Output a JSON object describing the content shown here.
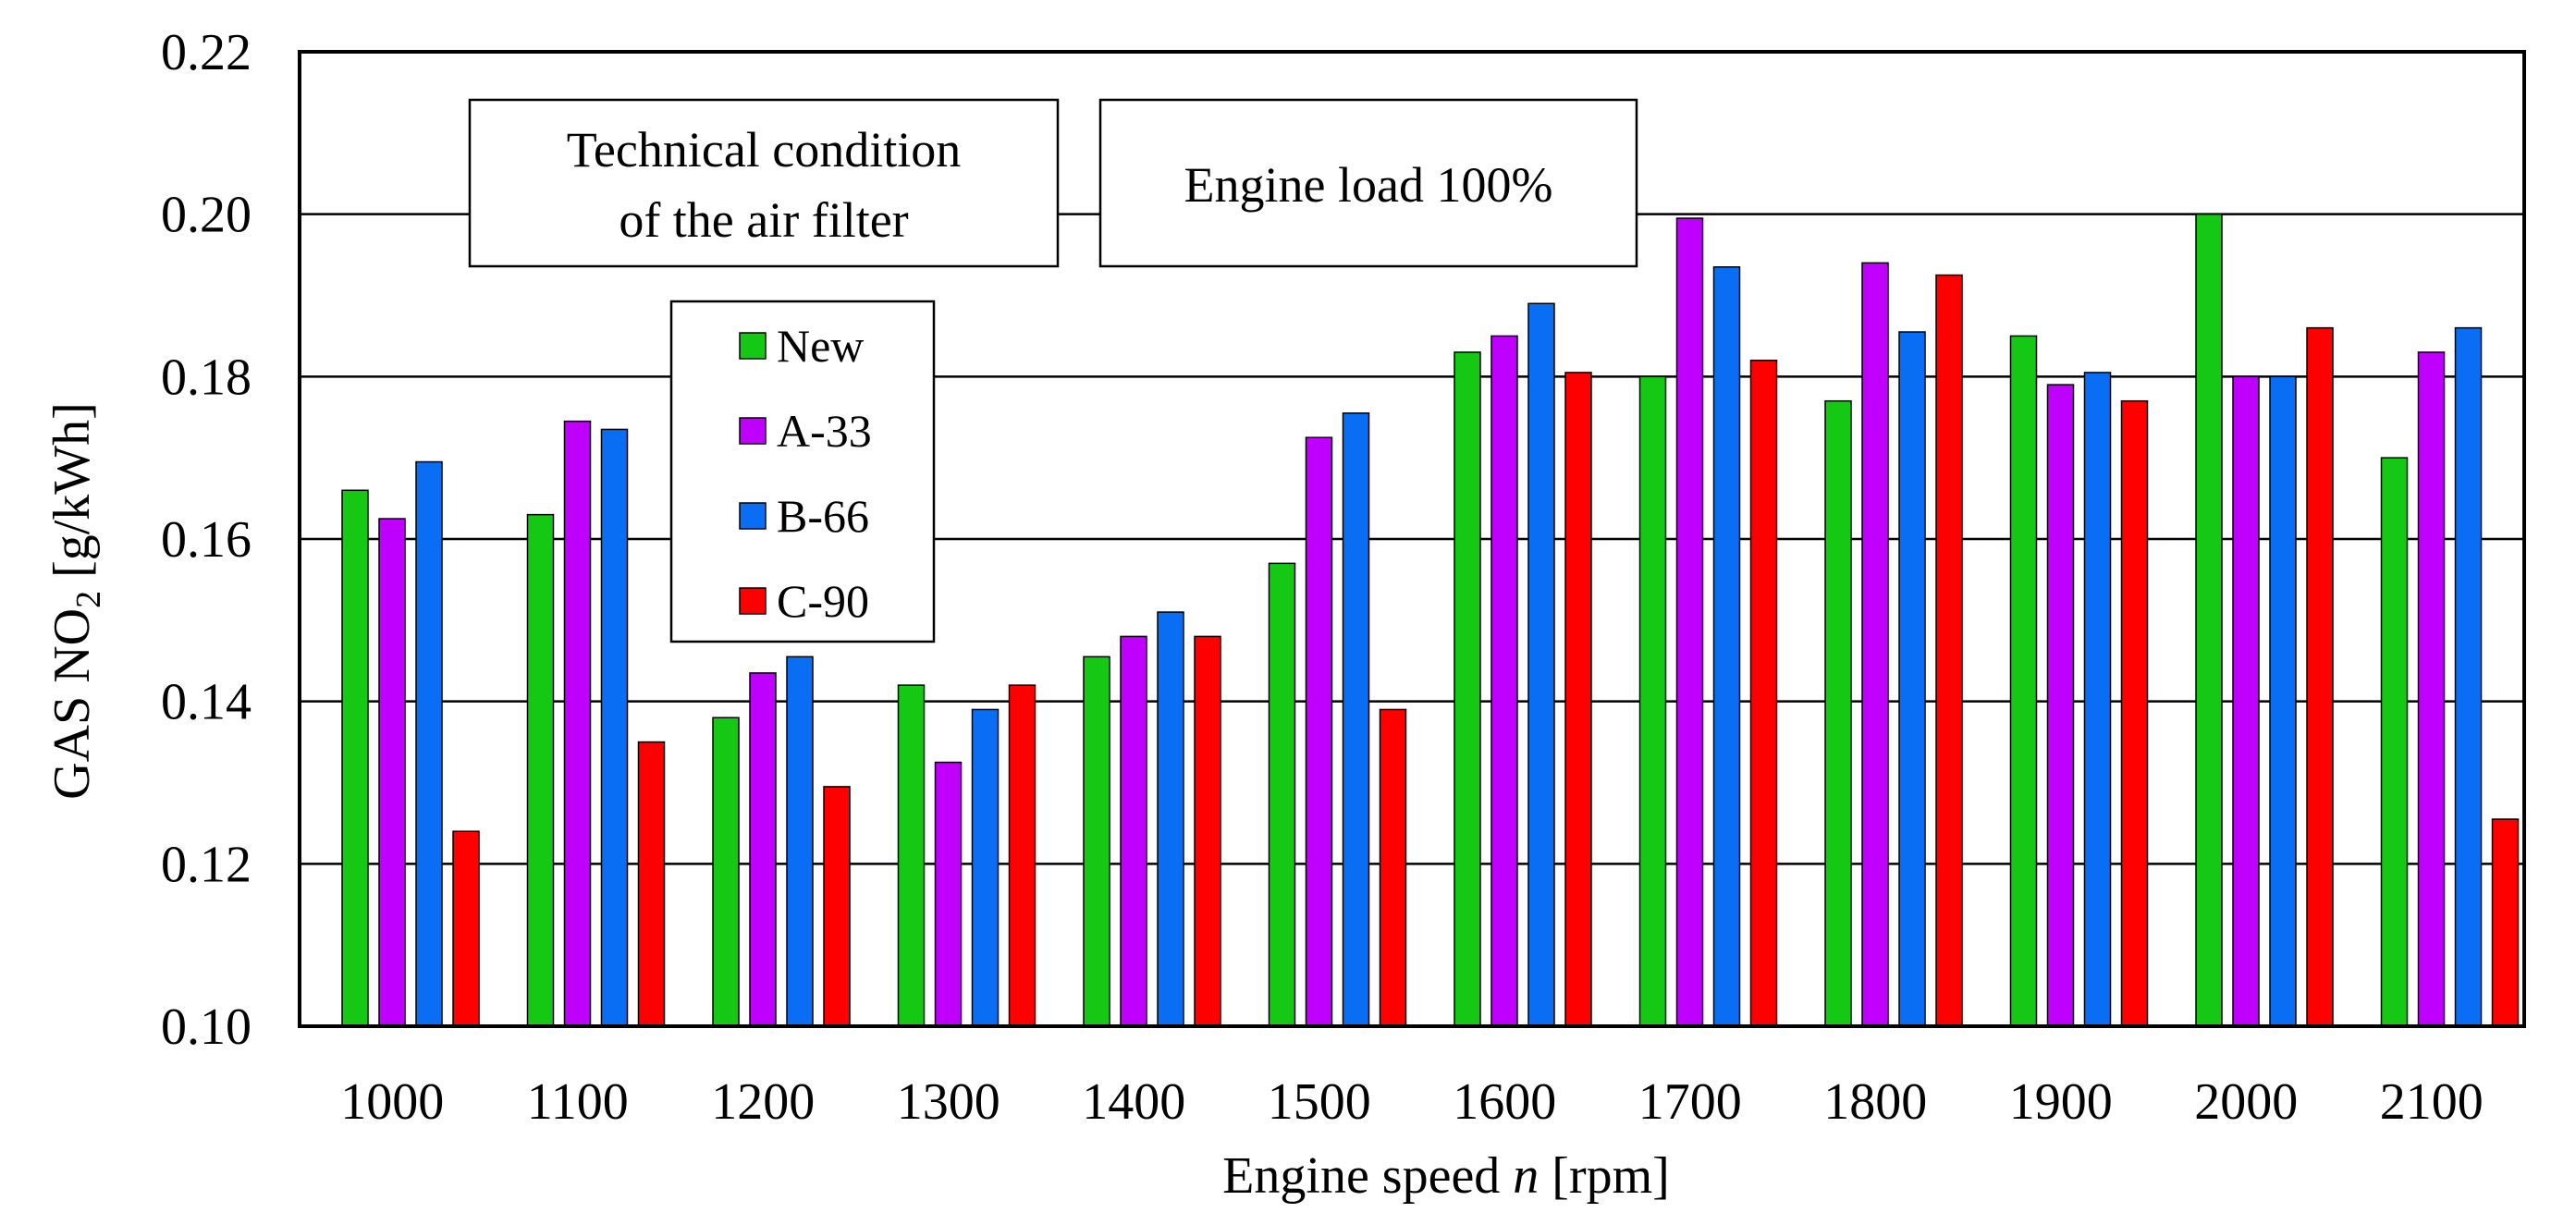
{
  "chart_data": {
    "type": "bar",
    "title": "",
    "xlabel_prefix": "Engine speed ",
    "xlabel_var": "n",
    "xlabel_suffix": " [rpm]",
    "ylabel_prefix": "GAS NO",
    "ylabel_sub": "2",
    "ylabel_suffix": " [g/kWh]",
    "ylim": [
      0.1,
      0.22
    ],
    "yticks": [
      "0.10",
      "0.12",
      "0.14",
      "0.16",
      "0.18",
      "0.20",
      "0.22"
    ],
    "grid": true,
    "categories": [
      "1000",
      "1100",
      "1200",
      "1300",
      "1400",
      "1500",
      "1600",
      "1700",
      "1800",
      "1900",
      "2000",
      "2100"
    ],
    "series": [
      {
        "name": "New",
        "color": "#14c814",
        "values": [
          0.166,
          0.163,
          0.138,
          0.142,
          0.1455,
          0.157,
          0.183,
          0.18,
          0.177,
          0.185,
          0.2,
          0.17
        ]
      },
      {
        "name": "A-33",
        "color": "#bf00ff",
        "values": [
          0.1625,
          0.1745,
          0.1435,
          0.1325,
          0.148,
          0.1725,
          0.185,
          0.1995,
          0.194,
          0.179,
          0.18,
          0.183
        ]
      },
      {
        "name": "B-66",
        "color": "#0a6ef5",
        "values": [
          0.1695,
          0.1735,
          0.1455,
          0.139,
          0.151,
          0.1755,
          0.189,
          0.1935,
          0.1855,
          0.1805,
          0.18,
          0.186
        ]
      },
      {
        "name": "C-90",
        "color": "#ff0000",
        "values": [
          0.124,
          0.135,
          0.1295,
          0.142,
          0.148,
          0.139,
          0.1805,
          0.182,
          0.1925,
          0.177,
          0.186,
          0.1255
        ]
      }
    ],
    "annotations": {
      "filter_box_line1": "Technical condition",
      "filter_box_line2": "of the air filter",
      "load_box": "Engine load 100%"
    },
    "legend_position": "upper-left-inside"
  }
}
